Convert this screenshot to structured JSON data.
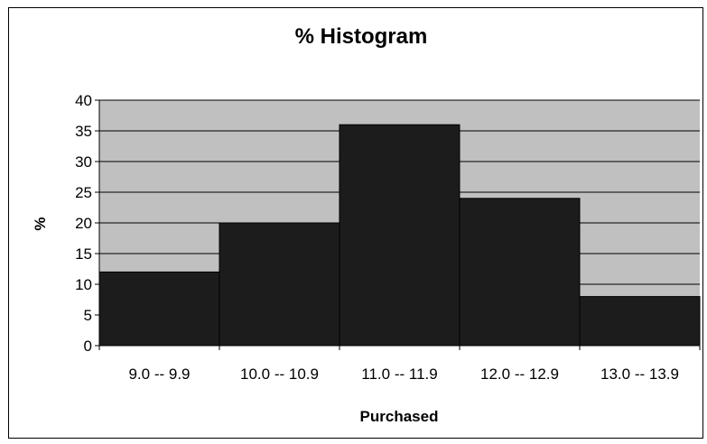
{
  "chart_data": {
    "type": "bar",
    "title": "% Histogram",
    "xlabel": "Purchased",
    "ylabel": "%",
    "categories": [
      "9.0 -- 9.9",
      "10.0 -- 10.9",
      "11.0 -- 11.9",
      "12.0 -- 12.9",
      "13.0 -- 13.9"
    ],
    "values": [
      12,
      20,
      36,
      24,
      8
    ],
    "ylim": [
      0,
      40
    ],
    "yticks": [
      0,
      5,
      10,
      15,
      20,
      25,
      30,
      35,
      40
    ],
    "grid": true,
    "legend": "none",
    "colors": {
      "bar": "#1c1c1c",
      "plot_background": "#c0c0c0",
      "gridline": "#000000"
    }
  }
}
